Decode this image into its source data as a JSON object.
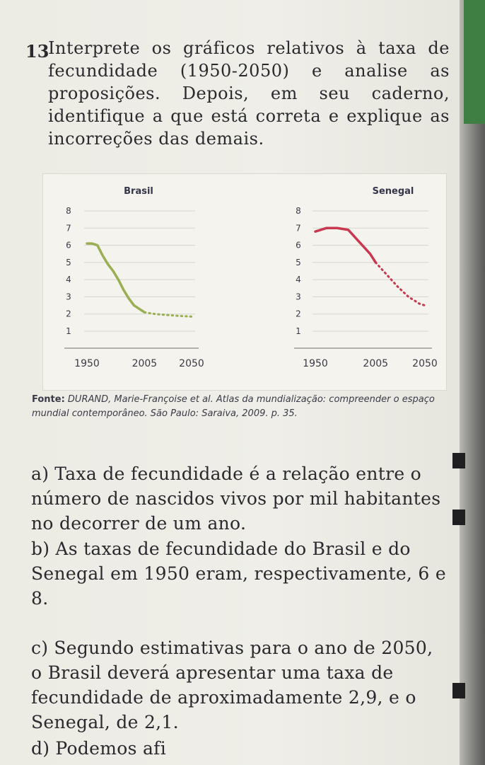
{
  "question": {
    "number": "13",
    "text": "Interprete os gráficos relativos à taxa de fecundidade (1950-2050) e analise as proposições. Depois, em seu caderno, identifique a que está correta e explique as incorreções das demais."
  },
  "chart_data": [
    {
      "type": "line",
      "title": "Brasil",
      "x_ticks": [
        "1950",
        "2005",
        "2050"
      ],
      "y_ticks": [
        "8",
        "7",
        "6",
        "5",
        "4",
        "3",
        "2",
        "1"
      ],
      "ylim": [
        1,
        8
      ],
      "xlim": [
        1950,
        2050
      ],
      "series": [
        {
          "x": [
            1950,
            1955,
            1960,
            1965,
            1970,
            1975,
            1980,
            1985,
            1990,
            1995,
            2000,
            2005
          ],
          "y": [
            6.1,
            6.1,
            6.0,
            5.4,
            4.9,
            4.5,
            4.0,
            3.4,
            2.9,
            2.5,
            2.3,
            2.1
          ],
          "style": "solid",
          "color": "#9aae52"
        },
        {
          "x": [
            2005,
            2015,
            2025,
            2035,
            2050
          ],
          "y": [
            2.1,
            2.0,
            1.95,
            1.9,
            1.85
          ],
          "style": "dotted",
          "color": "#9aae52"
        }
      ],
      "grid": true
    },
    {
      "type": "line",
      "title": "Senegal",
      "x_ticks": [
        "1950",
        "2005",
        "2050"
      ],
      "y_ticks": [
        "8",
        "7",
        "6",
        "5",
        "4",
        "3",
        "2",
        "1"
      ],
      "ylim": [
        1,
        8
      ],
      "xlim": [
        1950,
        2050
      ],
      "series": [
        {
          "x": [
            1950,
            1960,
            1970,
            1980,
            1990,
            2000,
            2005
          ],
          "y": [
            6.8,
            7.0,
            7.0,
            6.9,
            6.2,
            5.5,
            5.0
          ],
          "style": "solid",
          "color": "#c8384f"
        },
        {
          "x": [
            2005,
            2015,
            2025,
            2035,
            2045,
            2050
          ],
          "y": [
            5.0,
            4.3,
            3.6,
            3.0,
            2.6,
            2.5
          ],
          "style": "dotted",
          "color": "#c8384f"
        }
      ],
      "grid": true
    }
  ],
  "source": {
    "label": "Fonte:",
    "text": "DURAND, Marie-Françoise et al. Atlas da mundialização: compreender o espaço mundial contemporâneo. São Paulo: Saraiva, 2009. p. 35."
  },
  "options": [
    {
      "letter": "a)",
      "text": "Taxa de fecundidade é a relação entre o número de nascidos vivos por mil habitantes no decorrer de um ano."
    },
    {
      "letter": "b)",
      "text": "As taxas de fecundidade do Brasil e do Senegal em 1950 eram, respectivamente, 6 e 8."
    },
    {
      "letter": "c)",
      "text": "Segundo estimativas para o ano de 2050, o Brasil deverá apresentar uma taxa de fecundidade de aproximadamente 2,9, e o Senegal, de 2,1."
    },
    {
      "letter": "d)",
      "text": "Podemos afi"
    }
  ]
}
